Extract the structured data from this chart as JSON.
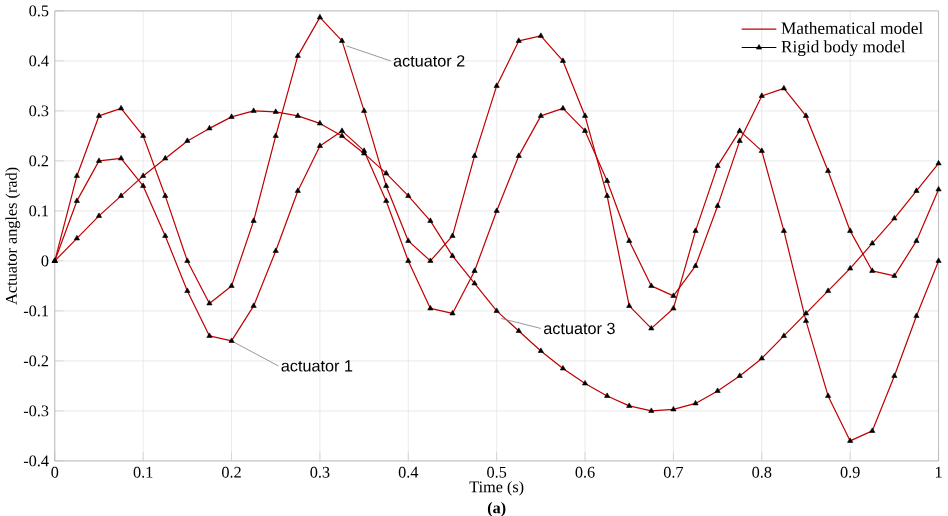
{
  "chart_data": {
    "type": "line",
    "xlabel": "Time (s)",
    "ylabel": "Actuator angles (rad)",
    "x": [
      0,
      0.025,
      0.05,
      0.075,
      0.1,
      0.125,
      0.15,
      0.175,
      0.2,
      0.225,
      0.25,
      0.275,
      0.3,
      0.325,
      0.35,
      0.375,
      0.4,
      0.425,
      0.45,
      0.475,
      0.5,
      0.525,
      0.55,
      0.575,
      0.6,
      0.625,
      0.65,
      0.675,
      0.7,
      0.725,
      0.75,
      0.775,
      0.8,
      0.825,
      0.85,
      0.875,
      0.9,
      0.925,
      0.95,
      0.975,
      1
    ],
    "series": [
      {
        "name": "Mathematical model",
        "color": "#c00000",
        "marker": "none",
        "values": [
          0,
          0.12,
          0.2,
          0.205,
          0.15,
          0.05,
          -0.06,
          -0.15,
          -0.16,
          -0.09,
          0.02,
          0.14,
          0.23,
          0.26,
          0.22,
          0.12,
          0.0,
          -0.095,
          -0.105,
          -0.02,
          0.1,
          0.21,
          0.29,
          0.305,
          0.26,
          0.16,
          0.04,
          -0.05,
          -0.07,
          -0.01,
          0.11,
          0.24,
          0.33,
          0.345,
          0.29,
          0.18,
          0.06,
          -0.02,
          -0.03,
          0.04,
          0.143
        ]
      },
      {
        "color": "#c00000",
        "marker": "none",
        "values": [
          0,
          0.17,
          0.29,
          0.305,
          0.25,
          0.13,
          0.0,
          -0.085,
          -0.05,
          0.08,
          0.25,
          0.41,
          0.487,
          0.44,
          0.3,
          0.15,
          0.04,
          0.0,
          0.05,
          0.21,
          0.35,
          0.44,
          0.45,
          0.4,
          0.29,
          0.13,
          -0.09,
          -0.135,
          -0.095,
          0.06,
          0.19,
          0.26,
          0.22,
          0.06,
          -0.12,
          -0.27,
          -0.36,
          -0.34,
          -0.23,
          -0.11,
          0.0
        ]
      },
      {
        "color": "#c00000",
        "marker": "none",
        "values": [
          0,
          0.045,
          0.09,
          0.13,
          0.17,
          0.205,
          0.24,
          0.265,
          0.288,
          0.3,
          0.298,
          0.29,
          0.275,
          0.25,
          0.215,
          0.175,
          0.13,
          0.08,
          0.01,
          -0.045,
          -0.1,
          -0.14,
          -0.18,
          -0.215,
          -0.245,
          -0.27,
          -0.29,
          -0.3,
          -0.297,
          -0.285,
          -0.26,
          -0.23,
          -0.195,
          -0.15,
          -0.105,
          -0.06,
          -0.015,
          0.035,
          0.085,
          0.14,
          0.195
        ]
      },
      {
        "name": "Rigid body model",
        "type": "scatter",
        "color": "#000000",
        "marker": "triangle",
        "values": [
          0,
          0.12,
          0.2,
          0.205,
          0.15,
          0.05,
          -0.06,
          -0.15,
          -0.16,
          -0.09,
          0.02,
          0.14,
          0.23,
          0.26,
          0.22,
          0.12,
          0.0,
          -0.095,
          -0.105,
          -0.02,
          0.1,
          0.21,
          0.29,
          0.305,
          0.26,
          0.16,
          0.04,
          -0.05,
          -0.07,
          -0.01,
          0.11,
          0.24,
          0.33,
          0.345,
          0.29,
          0.18,
          0.06,
          -0.02,
          -0.03,
          0.04,
          0.143
        ]
      },
      {
        "type": "scatter",
        "color": "#000000",
        "marker": "triangle",
        "values": [
          0,
          0.17,
          0.29,
          0.305,
          0.25,
          0.13,
          0.0,
          -0.085,
          -0.05,
          0.08,
          0.25,
          0.41,
          0.487,
          0.44,
          0.3,
          0.15,
          0.04,
          0.0,
          0.05,
          0.21,
          0.35,
          0.44,
          0.45,
          0.4,
          0.29,
          0.13,
          -0.09,
          -0.135,
          -0.095,
          0.06,
          0.19,
          0.26,
          0.22,
          0.06,
          -0.12,
          -0.27,
          -0.36,
          -0.34,
          -0.23,
          -0.11,
          0.0
        ]
      },
      {
        "type": "scatter",
        "color": "#000000",
        "marker": "triangle",
        "values": [
          0,
          0.045,
          0.09,
          0.13,
          0.17,
          0.205,
          0.24,
          0.265,
          0.288,
          0.3,
          0.298,
          0.29,
          0.275,
          0.25,
          0.215,
          0.175,
          0.13,
          0.08,
          0.01,
          -0.045,
          -0.1,
          -0.14,
          -0.18,
          -0.215,
          -0.245,
          -0.27,
          -0.29,
          -0.3,
          -0.297,
          -0.285,
          -0.26,
          -0.23,
          -0.195,
          -0.15,
          -0.105,
          -0.06,
          -0.015,
          0.035,
          0.085,
          0.14,
          0.195
        ]
      }
    ],
    "xlim": [
      0,
      1
    ],
    "xticks": [
      0,
      0.1,
      0.2,
      0.3,
      0.4,
      0.5,
      0.6,
      0.7,
      0.8,
      0.9,
      1
    ],
    "ylim": [
      -0.4,
      0.5
    ],
    "yticks": [
      -0.4,
      -0.3,
      -0.2,
      -0.1,
      0,
      0.1,
      0.2,
      0.3,
      0.4,
      0.5
    ],
    "grid": true,
    "legend": "top right",
    "annotations": [
      {
        "text": "actuator 1",
        "x": 0.2,
        "y": -0.16
      },
      {
        "text": "actuator 2",
        "x": 0.33,
        "y": 0.43
      },
      {
        "text": "actuator 3",
        "x": 0.505,
        "y": -0.115
      },
      "(a)"
    ]
  }
}
